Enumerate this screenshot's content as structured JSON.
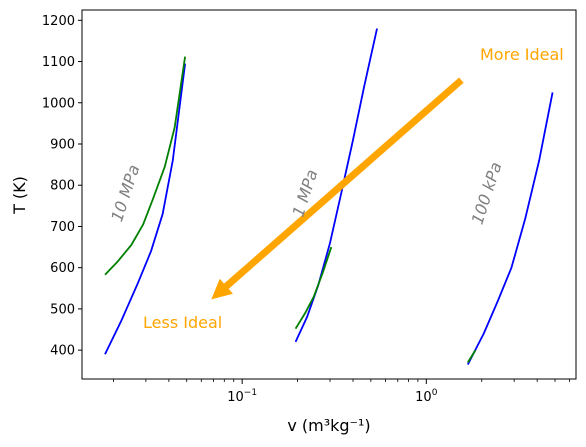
{
  "chart_data": {
    "type": "line",
    "xscale": "log",
    "xlim": [
      0.0135,
      6.5
    ],
    "ylim": [
      330,
      1225
    ],
    "xlabel": "v (m³kg⁻¹)",
    "ylabel": "T (K)",
    "yticks": [
      400,
      500,
      600,
      700,
      800,
      900,
      1000,
      1100,
      1200
    ],
    "xticks": [
      {
        "value": 0.1,
        "base": "10",
        "exp": "−1"
      },
      {
        "value": 1,
        "base": "10",
        "exp": "0"
      }
    ],
    "colors": {
      "ideal": "#0000ff",
      "real": "#008000",
      "arrow": "#ffa500",
      "label": "#808080"
    },
    "series": [
      {
        "kind": "ideal",
        "x": [
          0.018,
          0.022,
          0.027,
          0.032,
          0.037,
          0.042,
          0.049
        ],
        "y": [
          390,
          470,
          560,
          640,
          730,
          860,
          1095
        ]
      },
      {
        "kind": "real",
        "x": [
          0.018,
          0.021,
          0.025,
          0.029,
          0.033,
          0.038,
          0.043,
          0.049
        ],
        "y": [
          583,
          614,
          655,
          705,
          770,
          845,
          940,
          1112
        ]
      },
      {
        "kind": "ideal",
        "x": [
          0.195,
          0.225,
          0.26,
          0.3,
          0.345,
          0.4,
          0.46,
          0.54
        ],
        "y": [
          420,
          480,
          560,
          660,
          780,
          910,
          1040,
          1180
        ]
      },
      {
        "kind": "real",
        "x": [
          0.195,
          0.22,
          0.245,
          0.275,
          0.305
        ],
        "y": [
          452,
          490,
          530,
          590,
          650
        ]
      },
      {
        "kind": "ideal",
        "x": [
          1.68,
          2.05,
          2.45,
          2.9,
          3.45,
          4.1,
          4.85
        ],
        "y": [
          365,
          440,
          520,
          600,
          720,
          860,
          1025
        ]
      },
      {
        "kind": "real",
        "x": [
          1.68,
          1.85
        ],
        "y": [
          370,
          400
        ]
      }
    ],
    "annotations": [
      {
        "text": "10 MPa",
        "x": 0.0235,
        "y": 780,
        "rotation": -72
      },
      {
        "text": "1 MPa",
        "x": 0.222,
        "y": 780,
        "rotation": -72
      },
      {
        "text": "100 kPa",
        "x": 2.15,
        "y": 780,
        "rotation": -72
      }
    ],
    "arrow": {
      "from": [
        1.55,
        1055
      ],
      "to": [
        0.068,
        523
      ],
      "start_label": "More Ideal",
      "end_label": "Less Ideal"
    }
  }
}
